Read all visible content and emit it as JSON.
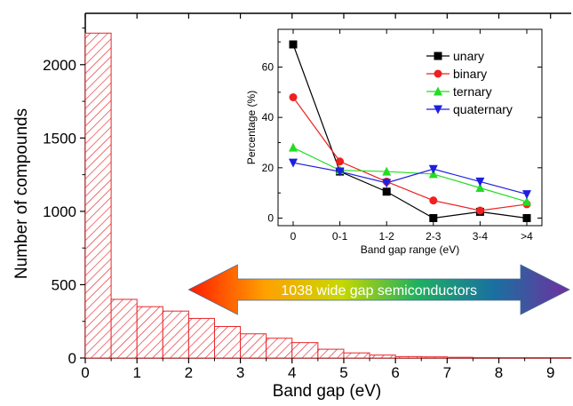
{
  "chart_data": [
    {
      "type": "bar",
      "xlabel": "Band gap (eV)",
      "ylabel": "Number of compounds",
      "xlim": [
        0,
        9.4
      ],
      "ylim": [
        0,
        2350
      ],
      "x_ticks": [
        0,
        1,
        2,
        3,
        4,
        5,
        6,
        7,
        8,
        9
      ],
      "y_ticks": [
        0,
        500,
        1000,
        1500,
        2000
      ],
      "bin_width": 0.5,
      "bins_start": [
        0,
        0.5,
        1.0,
        1.5,
        2.0,
        2.5,
        3.0,
        3.5,
        4.0,
        4.5,
        5.0,
        5.5,
        6.0,
        6.5,
        7.0,
        7.5,
        8.0,
        8.5,
        9.0
      ],
      "values": [
        2215,
        400,
        350,
        320,
        270,
        215,
        165,
        135,
        105,
        60,
        35,
        20,
        10,
        8,
        5,
        3,
        2,
        2,
        1
      ],
      "bar_color": "#e8262a",
      "hatch": "diagonal",
      "annotation": {
        "text": "1038 wide gap semiconductors",
        "from_x": 2.0,
        "to_x": 9.4,
        "gradient_colors": [
          "#ff1a00",
          "#ffa000",
          "#c8d800",
          "#20b060",
          "#1a70a0",
          "#7030a0"
        ]
      }
    },
    {
      "type": "line",
      "xlabel": "Band gap range (eV)",
      "ylabel": "Percentage (%)",
      "categories": [
        "0",
        "0-1",
        "1-2",
        "2-3",
        "3-4",
        ">4"
      ],
      "ylim": [
        -3,
        75
      ],
      "y_ticks": [
        0,
        20,
        40,
        60
      ],
      "legend_position": "top-right",
      "series": [
        {
          "name": "unary",
          "color": "#000000",
          "marker": "square",
          "values": [
            69,
            18.5,
            10.5,
            0,
            2.5,
            0
          ]
        },
        {
          "name": "binary",
          "color": "#ee2020",
          "marker": "circle",
          "values": [
            48,
            22.5,
            14.5,
            7,
            3,
            5.5
          ]
        },
        {
          "name": "ternary",
          "color": "#22dd22",
          "marker": "triangle-up",
          "values": [
            28,
            19,
            18.5,
            17.5,
            12,
            6.5
          ]
        },
        {
          "name": "quaternary",
          "color": "#1e1ee0",
          "marker": "triangle-down",
          "values": [
            22,
            18.5,
            14,
            19.5,
            14.5,
            9.5
          ]
        }
      ]
    }
  ]
}
